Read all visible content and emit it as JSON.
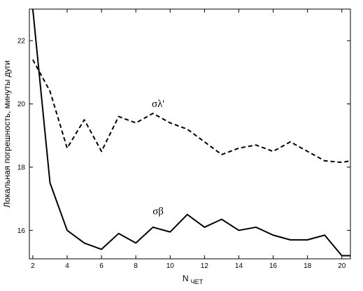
{
  "chart_data": {
    "type": "line",
    "title": "",
    "xlabel": "N",
    "xlabel_sub": "ЧЕТ",
    "ylabel": "Локальная погрешность, минуты дуги",
    "xlim": [
      1.8,
      20.5
    ],
    "ylim": [
      15.1,
      23.0
    ],
    "x_ticks": [
      2,
      4,
      6,
      8,
      10,
      12,
      14,
      16,
      18,
      20
    ],
    "y_ticks": [
      16,
      18,
      20,
      22
    ],
    "x_tick_labels": [
      "2",
      "4",
      "6",
      "8",
      "10",
      "12",
      "14",
      "16",
      "18",
      "20"
    ],
    "y_tick_labels": [
      "16",
      "18",
      "20",
      "22"
    ],
    "grid": false,
    "legend": "none",
    "series": [
      {
        "name": "σλ'",
        "style": "dashed",
        "color": "#000000",
        "label_at": [
          9.3,
          19.9
        ],
        "x": [
          2,
          3,
          4,
          5,
          6,
          7,
          8,
          9,
          10,
          11,
          12,
          13,
          14,
          15,
          16,
          17,
          18,
          19,
          20,
          20.5
        ],
        "values": [
          21.4,
          20.4,
          18.6,
          19.5,
          18.5,
          19.6,
          19.4,
          19.7,
          19.4,
          19.2,
          18.8,
          18.4,
          18.6,
          18.7,
          18.5,
          18.8,
          18.5,
          18.2,
          18.15,
          18.2
        ]
      },
      {
        "name": "σβ",
        "style": "solid",
        "color": "#000000",
        "label_at": [
          9.3,
          16.5
        ],
        "x": [
          2,
          3,
          4,
          5,
          6,
          7,
          8,
          9,
          10,
          11,
          12,
          13,
          14,
          15,
          16,
          17,
          18,
          19,
          20,
          20.5
        ],
        "values": [
          23.0,
          17.5,
          16.0,
          15.6,
          15.4,
          15.9,
          15.6,
          16.1,
          15.95,
          16.5,
          16.1,
          16.35,
          16.0,
          16.1,
          15.85,
          15.7,
          15.7,
          15.85,
          15.2,
          15.2
        ]
      }
    ]
  }
}
